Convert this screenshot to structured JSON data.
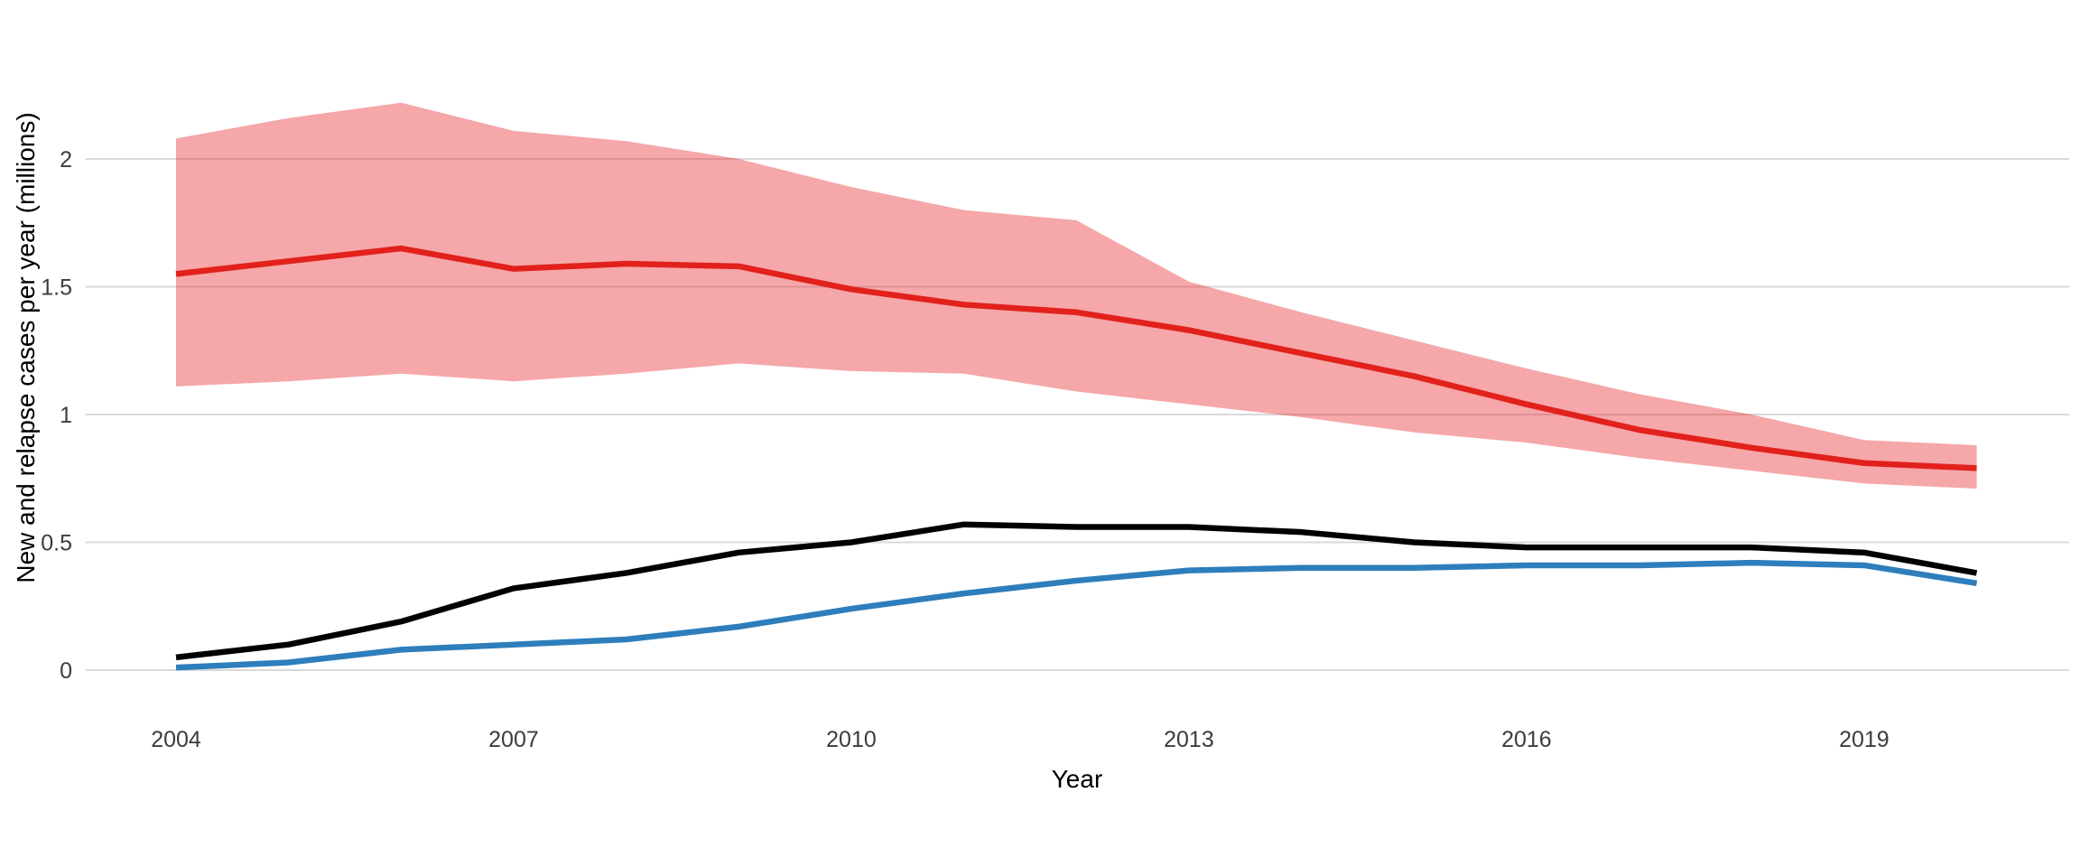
{
  "chart_data": {
    "type": "line",
    "title": "",
    "xlabel": "Year",
    "ylabel": "New and relapse cases per year (millions)",
    "x": [
      2004,
      2005,
      2006,
      2007,
      2008,
      2009,
      2010,
      2011,
      2012,
      2013,
      2014,
      2015,
      2016,
      2017,
      2018,
      2019,
      2020
    ],
    "series": [
      {
        "name": "red-estimate-line",
        "color": "#E2211C",
        "line_width": 6.5,
        "values": [
          1.55,
          1.6,
          1.65,
          1.57,
          1.59,
          1.58,
          1.49,
          1.43,
          1.4,
          1.33,
          1.24,
          1.15,
          1.04,
          0.94,
          0.87,
          0.81,
          0.79
        ],
        "band_upper": [
          2.08,
          2.16,
          2.22,
          2.11,
          2.07,
          2.0,
          1.89,
          1.8,
          1.76,
          1.52,
          1.4,
          1.29,
          1.18,
          1.08,
          1.0,
          0.9,
          0.88
        ],
        "band_lower": [
          1.11,
          1.13,
          1.16,
          1.13,
          1.16,
          1.2,
          1.17,
          1.16,
          1.09,
          1.04,
          0.99,
          0.93,
          0.89,
          0.83,
          0.78,
          0.73,
          0.71
        ],
        "band_fill": "rgba(231,35,40,0.40)"
      },
      {
        "name": "black-line",
        "color": "#000000",
        "line_width": 6.5,
        "values": [
          0.05,
          0.1,
          0.19,
          0.32,
          0.38,
          0.46,
          0.5,
          0.57,
          0.56,
          0.56,
          0.54,
          0.5,
          0.48,
          0.48,
          0.48,
          0.46,
          0.38
        ]
      },
      {
        "name": "blue-line",
        "color": "#2E7EBC",
        "line_width": 6.5,
        "values": [
          0.01,
          0.03,
          0.08,
          0.1,
          0.12,
          0.17,
          0.24,
          0.3,
          0.35,
          0.39,
          0.4,
          0.4,
          0.41,
          0.41,
          0.42,
          0.41,
          0.34
        ]
      }
    ],
    "x_ticks": [
      {
        "v": 2004,
        "label": "2004"
      },
      {
        "v": 2007,
        "label": "2007"
      },
      {
        "v": 2010,
        "label": "2010"
      },
      {
        "v": 2013,
        "label": "2013"
      },
      {
        "v": 2016,
        "label": "2016"
      },
      {
        "v": 2019,
        "label": "2019"
      }
    ],
    "y_ticks": [
      {
        "v": 0,
        "label": "0"
      },
      {
        "v": 0.5,
        "label": "0.5"
      },
      {
        "v": 1,
        "label": "1"
      },
      {
        "v": 1.5,
        "label": "1.5"
      },
      {
        "v": 2,
        "label": "2"
      }
    ],
    "xlim": [
      2003.2,
      2020.8
    ],
    "ylim": [
      0,
      2.4
    ],
    "grid": {
      "show": true,
      "color": "#D9D9D9",
      "width": 2
    },
    "legend": "none"
  }
}
